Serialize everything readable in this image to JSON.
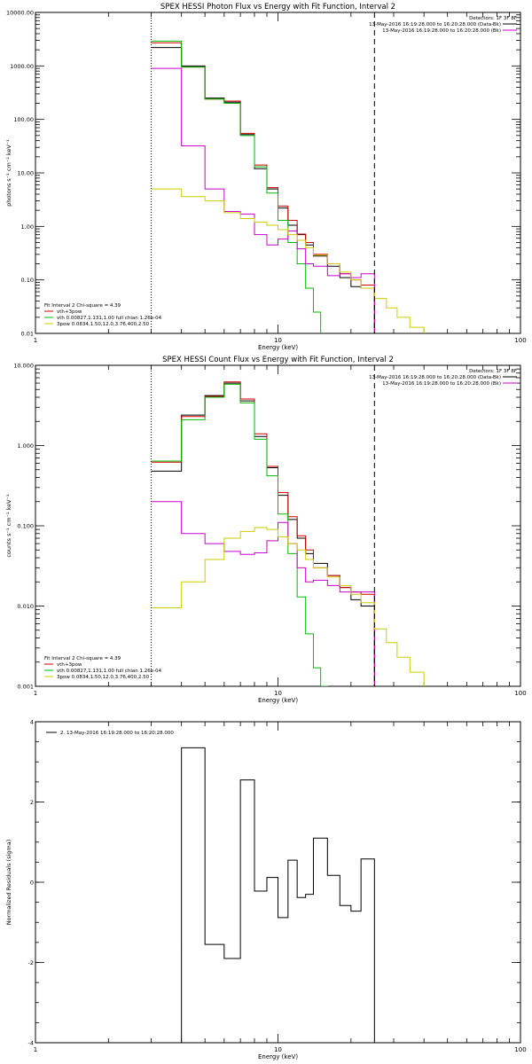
{
  "chart_data": [
    {
      "type": "line",
      "title": "SPEX HESSI Photon Flux vs Energy with Fit Function, Interval 2",
      "xlabel": "Energy (keV)",
      "ylabel": "photons s⁻¹ cm⁻² keV⁻¹",
      "xscale": "log",
      "yscale": "log",
      "xlim": [
        1,
        100
      ],
      "ylim": [
        0.01,
        10000
      ],
      "grid": false,
      "x_ticks": [
        {
          "v": 1,
          "label": "1"
        },
        {
          "v": 10,
          "label": "10"
        },
        {
          "v": 100,
          "label": "100"
        }
      ],
      "y_ticks": [
        {
          "v": 0.01,
          "label": "0.01"
        },
        {
          "v": 0.1,
          "label": "0.10"
        },
        {
          "v": 1,
          "label": "1.00"
        },
        {
          "v": 10,
          "label": "10.00"
        },
        {
          "v": 100,
          "label": "100.00"
        },
        {
          "v": 1000,
          "label": "1000.00"
        },
        {
          "v": 10000,
          "label": "10000.00"
        }
      ],
      "vlines": [
        {
          "x": 3.0,
          "style": "dotted"
        },
        {
          "x": 25.0,
          "style": "dashed"
        }
      ],
      "legend_top": [
        {
          "text": "Detectors: 1F 3F 8F",
          "color": "#000000",
          "swatch": false
        },
        {
          "text": "13-May-2016 16:19:28.000 to 16:20:28.000 (Data-Bk)",
          "color": "#000000",
          "swatch": true
        },
        {
          "text": "13-May-2016 16:19:28.000 to 16:20:28.000 (Bk)",
          "color": "#cc00cc",
          "swatch": true
        }
      ],
      "legend_bottom": [
        {
          "text": "Fit Interval 2  Chi-square = 4.39",
          "color": "#000000",
          "swatch": false
        },
        {
          "text": "vth+3pow",
          "color": "#cc0000",
          "swatch": true
        },
        {
          "text": "vth 0.00827,1.131,1.00  full chian 1.26e-04",
          "color": "#00bb00",
          "swatch": true
        },
        {
          "text": "3pow 0.0834,1.50,12.0,3.76,400,2.50",
          "color": "#cccc00",
          "swatch": true
        }
      ],
      "series": [
        {
          "color": "#000000",
          "edges": [
            3,
            4,
            5,
            6,
            7,
            8,
            9,
            10,
            11,
            12,
            13,
            14,
            16,
            18,
            20,
            22,
            25
          ],
          "values": [
            2200,
            1000,
            250,
            210,
            52,
            12,
            5,
            2.2,
            1.05,
            0.7,
            0.45,
            0.28,
            0.18,
            0.11,
            0.075,
            0.07
          ]
        },
        {
          "color": "#cc0000",
          "edges": [
            3,
            4,
            5,
            6,
            7,
            8,
            9,
            10,
            11,
            12,
            13,
            14,
            16,
            18,
            20,
            22,
            25
          ],
          "values": [
            2700,
            950,
            240,
            220,
            55,
            14,
            5.3,
            2.4,
            1.3,
            0.72,
            0.5,
            0.3,
            0.2,
            0.13,
            0.1,
            0.08
          ]
        },
        {
          "color": "#00bb00",
          "edges": [
            3,
            4,
            5,
            6,
            7,
            8,
            9,
            10,
            11,
            12,
            13,
            14,
            15
          ],
          "values": [
            2900,
            950,
            240,
            200,
            50,
            13,
            4.2,
            1.3,
            0.5,
            0.2,
            0.07,
            0.025
          ]
        },
        {
          "color": "#cc00cc",
          "edges": [
            3,
            4,
            5,
            6,
            7,
            8,
            9,
            10,
            11,
            12,
            13,
            14,
            16,
            18,
            20,
            22,
            25
          ],
          "values": [
            900,
            32,
            5,
            1.9,
            1.7,
            0.7,
            0.45,
            0.58,
            0.82,
            0.38,
            0.2,
            0.18,
            0.12,
            0.13,
            0.11,
            0.13
          ]
        },
        {
          "color": "#cccc00",
          "edges": [
            3,
            4,
            5,
            6,
            7,
            8,
            9,
            10,
            11,
            12,
            13,
            14,
            16,
            18,
            20,
            22,
            25,
            28,
            31,
            35,
            40
          ],
          "values": [
            5,
            3.6,
            3,
            1.8,
            1.4,
            1.2,
            1.05,
            0.87,
            0.7,
            0.55,
            0.4,
            0.29,
            0.2,
            0.14,
            0.1,
            0.07,
            0.045,
            0.03,
            0.02,
            0.013
          ]
        }
      ]
    },
    {
      "type": "line",
      "title": "SPEX HESSI Count Flux vs Energy with Fit Function, Interval 2",
      "xlabel": "Energy (keV)",
      "ylabel": "counts s⁻¹ cm⁻² keV⁻¹",
      "xscale": "log",
      "yscale": "log",
      "xlim": [
        1,
        100
      ],
      "ylim": [
        0.001,
        10
      ],
      "grid": false,
      "x_ticks": [
        {
          "v": 1,
          "label": "1"
        },
        {
          "v": 10,
          "label": "10"
        },
        {
          "v": 100,
          "label": "100"
        }
      ],
      "y_ticks": [
        {
          "v": 0.001,
          "label": "0.001"
        },
        {
          "v": 0.01,
          "label": "0.010"
        },
        {
          "v": 0.1,
          "label": "0.100"
        },
        {
          "v": 1,
          "label": "1.000"
        },
        {
          "v": 10,
          "label": "10.000"
        }
      ],
      "vlines": [
        {
          "x": 3.0,
          "style": "dotted"
        },
        {
          "x": 25.0,
          "style": "dashed"
        }
      ],
      "legend_top": [
        {
          "text": "Detectors: 1F 3F 8F",
          "color": "#000000",
          "swatch": false
        },
        {
          "text": "13-May-2016 16:19:28.000 to 16:20:28.000 (Data-Bk)",
          "color": "#000000",
          "swatch": true
        },
        {
          "text": "13-May-2016 16:19:28.000 to 16:20:28.000 (Bk)",
          "color": "#cc00cc",
          "swatch": true
        }
      ],
      "legend_bottom": [
        {
          "text": "Fit Interval 2  Chi-square = 4.39",
          "color": "#000000",
          "swatch": false
        },
        {
          "text": "vth+3pow",
          "color": "#cc0000",
          "swatch": true
        },
        {
          "text": "vth 0.00827,1.131,1.00  full chian 1.26e-04",
          "color": "#00bb00",
          "swatch": true
        },
        {
          "text": "3pow 0.0834,1.50,12.0,3.76,400,2.50",
          "color": "#cccc00",
          "swatch": true
        }
      ],
      "series": [
        {
          "color": "#000000",
          "edges": [
            3,
            4,
            5,
            6,
            7,
            8,
            9,
            10,
            11,
            12,
            13,
            14,
            16,
            18,
            20,
            22,
            25
          ],
          "values": [
            0.48,
            2.4,
            4.2,
            6.0,
            3.6,
            1.3,
            0.53,
            0.24,
            0.12,
            0.07,
            0.045,
            0.034,
            0.024,
            0.017,
            0.012,
            0.01
          ]
        },
        {
          "color": "#cc0000",
          "edges": [
            3,
            4,
            5,
            6,
            7,
            8,
            9,
            10,
            11,
            12,
            13,
            14,
            16,
            18,
            20,
            22,
            25
          ],
          "values": [
            0.62,
            2.3,
            4.1,
            6.2,
            3.8,
            1.4,
            0.55,
            0.26,
            0.13,
            0.075,
            0.05,
            0.03,
            0.024,
            0.017,
            0.015,
            0.014
          ]
        },
        {
          "color": "#00bb00",
          "edges": [
            3,
            4,
            5,
            6,
            7,
            8,
            9,
            10,
            11,
            12,
            13,
            14,
            15,
            16
          ],
          "values": [
            0.64,
            2.1,
            4.0,
            5.8,
            3.4,
            1.2,
            0.42,
            0.14,
            0.045,
            0.013,
            0.0045,
            0.0017,
            0.001
          ]
        },
        {
          "color": "#cc00cc",
          "edges": [
            3,
            4,
            5,
            6,
            7,
            8,
            9,
            10,
            11,
            12,
            13,
            14,
            16,
            18,
            20,
            22,
            25
          ],
          "values": [
            0.2,
            0.08,
            0.06,
            0.048,
            0.044,
            0.046,
            0.065,
            0.11,
            0.06,
            0.03,
            0.02,
            0.021,
            0.018,
            0.015,
            0.015,
            0.015
          ]
        },
        {
          "color": "#cccc00",
          "edges": [
            3,
            4,
            5,
            6,
            7,
            8,
            9,
            10,
            11,
            12,
            13,
            14,
            16,
            18,
            20,
            22,
            25,
            28,
            31,
            35,
            40
          ],
          "values": [
            0.0095,
            0.02,
            0.038,
            0.07,
            0.085,
            0.095,
            0.09,
            0.073,
            0.06,
            0.05,
            0.038,
            0.03,
            0.023,
            0.018,
            0.014,
            0.011,
            0.0052,
            0.0035,
            0.0023,
            0.0015
          ]
        }
      ]
    },
    {
      "type": "line",
      "title": "",
      "xlabel": "Energy (keV)",
      "ylabel": "Normalized Residuals (sigma)",
      "xscale": "log",
      "yscale": "linear",
      "xlim": [
        1,
        100
      ],
      "ylim": [
        -4,
        4
      ],
      "grid": false,
      "x_ticks": [
        {
          "v": 1,
          "label": "1"
        },
        {
          "v": 10,
          "label": "10"
        },
        {
          "v": 100,
          "label": "100"
        }
      ],
      "y_ticks": [
        {
          "v": -4,
          "label": "-4"
        },
        {
          "v": -2,
          "label": "-2"
        },
        {
          "v": 0,
          "label": "0"
        },
        {
          "v": 2,
          "label": "2"
        },
        {
          "v": 4,
          "label": "4"
        }
      ],
      "vlines": [],
      "legend_top": [
        {
          "text": "2. 13-May-2016 16:19:28.000 to 16:20:28.000",
          "color": "#000000",
          "swatch": true
        }
      ],
      "legend_bottom": [],
      "series": [
        {
          "color": "#000000",
          "edges": [
            4,
            5,
            6,
            7,
            8,
            9,
            10,
            11,
            12,
            13,
            14,
            16,
            18,
            20,
            22,
            25
          ],
          "values": [
            3.35,
            -1.55,
            -1.9,
            2.55,
            -0.22,
            0.12,
            -0.88,
            0.55,
            -0.38,
            -0.3,
            1.1,
            0.17,
            -0.58,
            -0.72,
            0.58
          ],
          "drop_to_bottom": true
        }
      ]
    }
  ]
}
